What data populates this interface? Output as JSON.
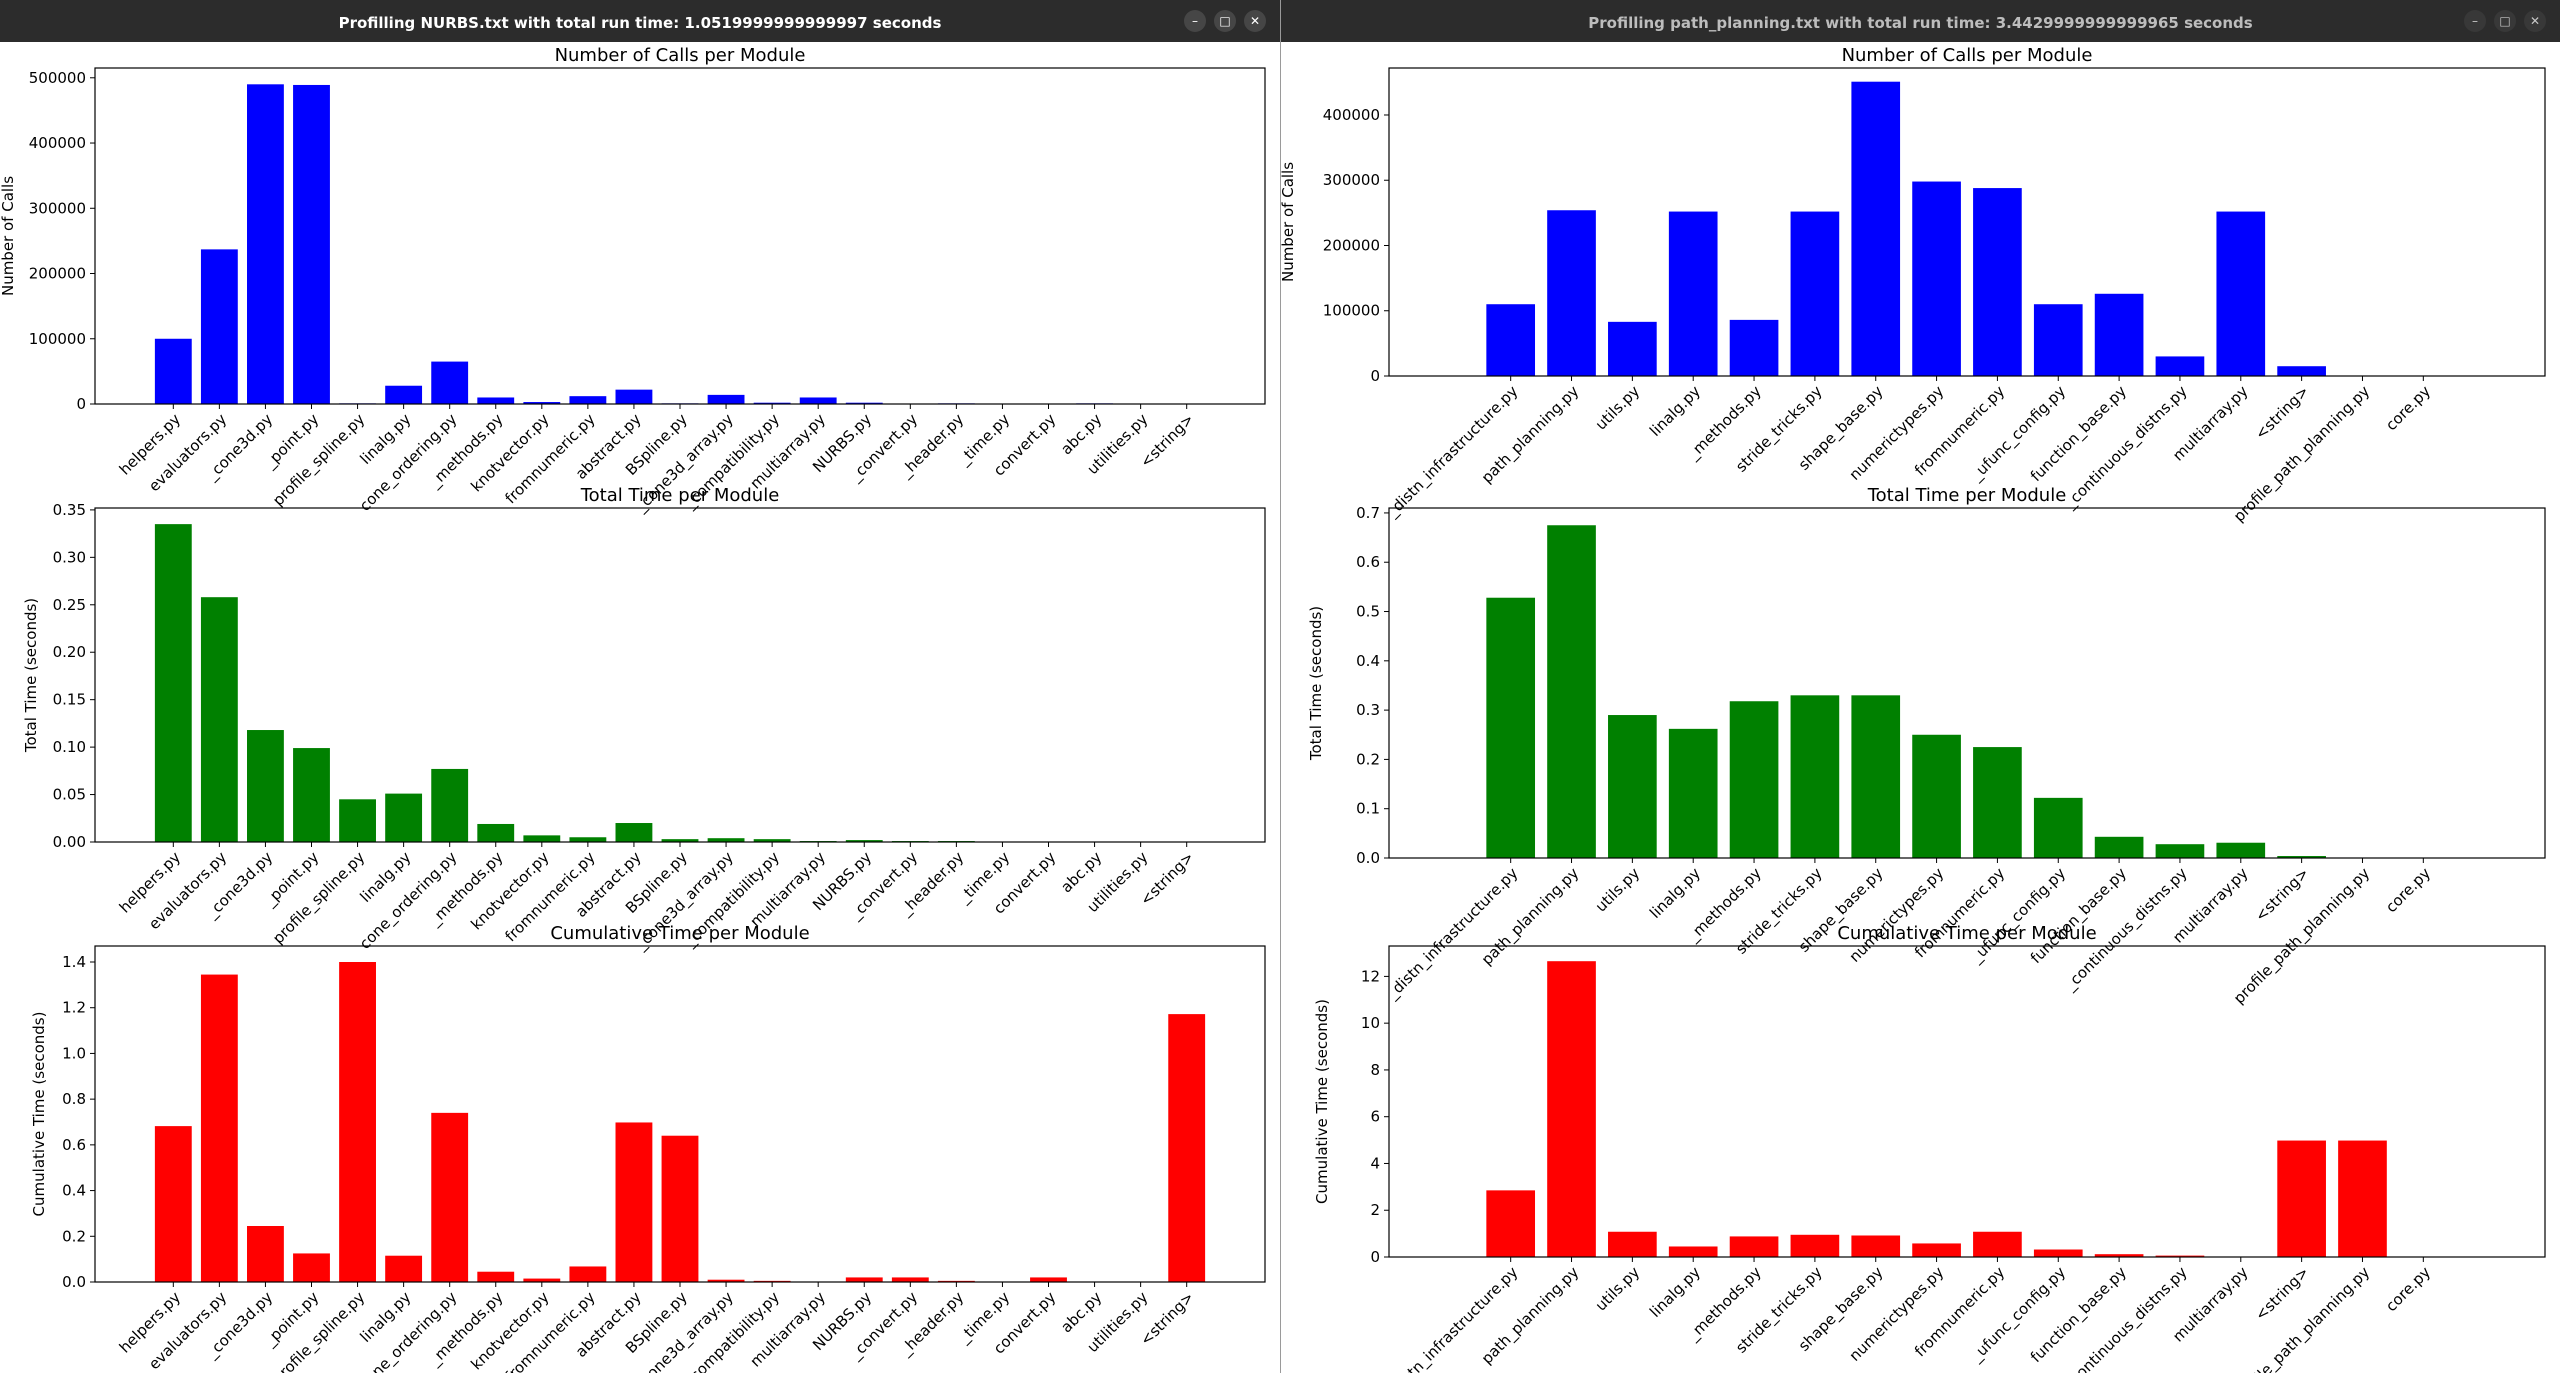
{
  "windows": [
    {
      "title": "Profilling NURBS.txt with total run time: 1.0519999999999997 seconds",
      "controls": {
        "minimize": "–",
        "maximize": "□",
        "close": "✕"
      }
    },
    {
      "title": "Profilling path_planning.txt with total run time: 3.4429999999999965 seconds",
      "controls": {
        "minimize": "–",
        "maximize": "□",
        "close": "✕"
      }
    }
  ],
  "chart_data": [
    {
      "type": "bar",
      "title": "Number of Calls per Module",
      "xlabel": "",
      "ylabel": "Number of Calls",
      "color": "#0000ff",
      "ylim": [
        0,
        515000
      ],
      "yticks": [
        0,
        100000,
        200000,
        300000,
        400000,
        500000
      ],
      "ytick_labels": [
        "0",
        "100000",
        "200000",
        "300000",
        "400000",
        "500000"
      ],
      "categories": [
        "helpers.py",
        "evaluators.py",
        "_cone3d.py",
        "_point.py",
        "profile_spline.py",
        "linalg.py",
        "cone_ordering.py",
        "_methods.py",
        "knotvector.py",
        "fromnumeric.py",
        "abstract.py",
        "BSpline.py",
        "_cone3d_array.py",
        "_compatibility.py",
        "multiarray.py",
        "NURBS.py",
        "_convert.py",
        "_header.py",
        "_time.py",
        "convert.py",
        "abc.py",
        "utilities.py",
        "<string>"
      ],
      "values": [
        100000,
        237000,
        490000,
        489000,
        1000,
        28000,
        65000,
        10000,
        3000,
        12000,
        22000,
        1000,
        14000,
        2000,
        10000,
        2000,
        500,
        1000,
        500,
        500,
        1000,
        300,
        200
      ]
    },
    {
      "type": "bar",
      "title": "Total Time per Module",
      "xlabel": "",
      "ylabel": "Total Time (seconds)",
      "color": "#008000",
      "ylim": [
        0,
        0.352
      ],
      "yticks": [
        0,
        0.05,
        0.1,
        0.15,
        0.2,
        0.25,
        0.3,
        0.35
      ],
      "ytick_labels": [
        "0.00",
        "0.05",
        "0.10",
        "0.15",
        "0.20",
        "0.25",
        "0.30",
        "0.35"
      ],
      "categories": [
        "helpers.py",
        "evaluators.py",
        "_cone3d.py",
        "_point.py",
        "profile_spline.py",
        "linalg.py",
        "cone_ordering.py",
        "_methods.py",
        "knotvector.py",
        "fromnumeric.py",
        "abstract.py",
        "BSpline.py",
        "_cone3d_array.py",
        "_compatibility.py",
        "multiarray.py",
        "NURBS.py",
        "_convert.py",
        "_header.py",
        "_time.py",
        "convert.py",
        "abc.py",
        "utilities.py",
        "<string>"
      ],
      "values": [
        0.335,
        0.258,
        0.118,
        0.099,
        0.045,
        0.051,
        0.077,
        0.019,
        0.007,
        0.005,
        0.02,
        0.003,
        0.004,
        0.003,
        0.001,
        0.002,
        0.001,
        0.001,
        0.0005,
        0.0005,
        0.0002,
        0.0002,
        0.0001
      ]
    },
    {
      "type": "bar",
      "title": "Cumulative Time per Module",
      "xlabel": "",
      "ylabel": "Cumulative Time (seconds)",
      "color": "#ff0000",
      "ylim": [
        0,
        1.47
      ],
      "yticks": [
        0,
        0.2,
        0.4,
        0.6,
        0.8,
        1.0,
        1.2,
        1.4
      ],
      "ytick_labels": [
        "0.0",
        "0.2",
        "0.4",
        "0.6",
        "0.8",
        "1.0",
        "1.2",
        "1.4"
      ],
      "categories": [
        "helpers.py",
        "evaluators.py",
        "_cone3d.py",
        "_point.py",
        "profile_spline.py",
        "linalg.py",
        "cone_ordering.py",
        "_methods.py",
        "knotvector.py",
        "fromnumeric.py",
        "abstract.py",
        "BSpline.py",
        "_cone3d_array.py",
        "_compatibility.py",
        "multiarray.py",
        "NURBS.py",
        "_convert.py",
        "_header.py",
        "_time.py",
        "convert.py",
        "abc.py",
        "utilities.py",
        "<string>"
      ],
      "values": [
        0.682,
        1.345,
        0.245,
        0.125,
        1.4,
        0.115,
        0.74,
        0.045,
        0.015,
        0.068,
        0.698,
        0.64,
        0.01,
        0.005,
        0.001,
        0.02,
        0.02,
        0.005,
        0.001,
        0.02,
        0.001,
        0.001,
        1.172
      ]
    },
    {
      "type": "bar",
      "title": "Number of Calls per Module",
      "xlabel": "",
      "ylabel": "Number of Calls",
      "color": "#0000ff",
      "ylim": [
        0,
        472000
      ],
      "yticks": [
        0,
        100000,
        200000,
        300000,
        400000
      ],
      "ytick_labels": [
        "0",
        "100000",
        "200000",
        "300000",
        "400000"
      ],
      "categories": [
        "_distn_infrastructure.py",
        "path_planning.py",
        "utils.py",
        "linalg.py",
        "_methods.py",
        "stride_tricks.py",
        "shape_base.py",
        "numerictypes.py",
        "fromnumeric.py",
        "_ufunc_config.py",
        "function_base.py",
        "_continuous_distns.py",
        "multiarray.py",
        "<string>",
        "profile_path_planning.py",
        "core.py"
      ],
      "values": [
        110000,
        254000,
        83000,
        252000,
        86000,
        252000,
        451000,
        298000,
        288000,
        110000,
        126000,
        30000,
        252000,
        15000,
        200,
        100
      ]
    },
    {
      "type": "bar",
      "title": "Total Time per Module",
      "xlabel": "",
      "ylabel": "Total Time (seconds)",
      "color": "#008000",
      "ylim": [
        0,
        0.71
      ],
      "yticks": [
        0,
        0.1,
        0.2,
        0.3,
        0.4,
        0.5,
        0.6,
        0.7
      ],
      "ytick_labels": [
        "0.0",
        "0.1",
        "0.2",
        "0.3",
        "0.4",
        "0.5",
        "0.6",
        "0.7"
      ],
      "categories": [
        "_distn_infrastructure.py",
        "path_planning.py",
        "utils.py",
        "linalg.py",
        "_methods.py",
        "stride_tricks.py",
        "shape_base.py",
        "numerictypes.py",
        "fromnumeric.py",
        "_ufunc_config.py",
        "function_base.py",
        "_continuous_distns.py",
        "multiarray.py",
        "<string>",
        "profile_path_planning.py",
        "core.py"
      ],
      "values": [
        0.528,
        0.675,
        0.29,
        0.262,
        0.318,
        0.33,
        0.33,
        0.25,
        0.225,
        0.122,
        0.043,
        0.028,
        0.031,
        0.004,
        0.0005,
        0.0002
      ]
    },
    {
      "type": "bar",
      "title": "Cumulative Time per Module",
      "xlabel": "",
      "ylabel": "Cumulative Time (seconds)",
      "color": "#ff0000",
      "ylim": [
        0,
        13.3
      ],
      "yticks": [
        0,
        2,
        4,
        6,
        8,
        10,
        12
      ],
      "ytick_labels": [
        "0",
        "2",
        "4",
        "6",
        "8",
        "10",
        "12"
      ],
      "categories": [
        "_distn_infrastructure.py",
        "path_planning.py",
        "utils.py",
        "linalg.py",
        "_methods.py",
        "stride_tricks.py",
        "shape_base.py",
        "numerictypes.py",
        "fromnumeric.py",
        "_ufunc_config.py",
        "function_base.py",
        "_continuous_distns.py",
        "multiarray.py",
        "<string>",
        "profile_path_planning.py",
        "core.py"
      ],
      "values": [
        2.85,
        12.65,
        1.08,
        0.45,
        0.88,
        0.95,
        0.92,
        0.58,
        1.08,
        0.32,
        0.12,
        0.06,
        0.02,
        4.98,
        4.98,
        0.01
      ]
    }
  ]
}
